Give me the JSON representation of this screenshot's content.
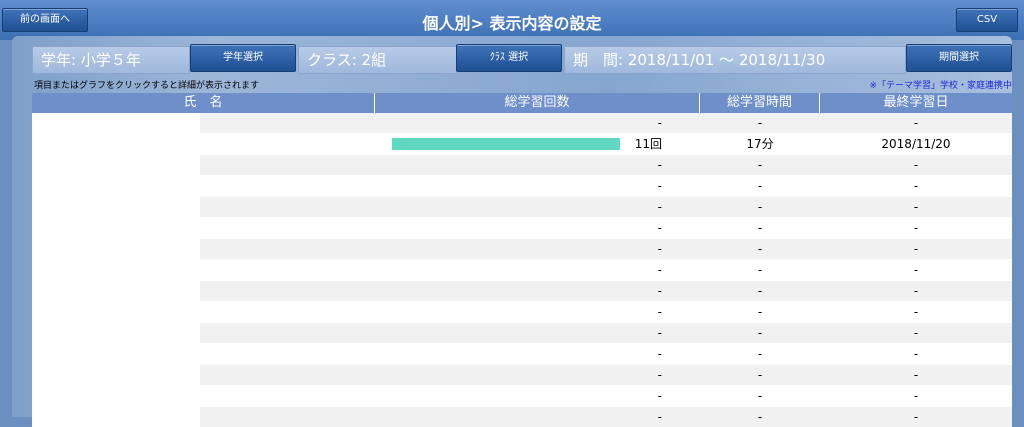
{
  "header": {
    "back_label": "前の画面へ",
    "title": "個人別> 表示内容の設定",
    "csv_label": "CSV"
  },
  "controls": {
    "grade": "学年: 小学５年",
    "grade_button": "学年選択",
    "class": "クラス: 2組",
    "class_button": "ｸﾗｽ 選択",
    "period": "期　間: 2018/11/01 ～ 2018/11/30",
    "period_button": "期間選択"
  },
  "hint": "項目またはグラフをクリックすると詳細が表示されます",
  "notice": "※「テーマ学習」学校・家庭連携中",
  "table": {
    "headers": [
      "氏　名",
      "総学習回数",
      "総学習時間",
      "最終学習日"
    ],
    "rows": [
      {
        "count": "-",
        "time": "-",
        "date": "-",
        "bar": 0
      },
      {
        "count": "11回",
        "time": "17分",
        "date": "2018/11/20",
        "bar": 1
      },
      {
        "count": "-",
        "time": "-",
        "date": "-",
        "bar": 0
      },
      {
        "count": "-",
        "time": "-",
        "date": "-",
        "bar": 0
      },
      {
        "count": "-",
        "time": "-",
        "date": "-",
        "bar": 0
      },
      {
        "count": "-",
        "time": "-",
        "date": "-",
        "bar": 0
      },
      {
        "count": "-",
        "time": "-",
        "date": "-",
        "bar": 0
      },
      {
        "count": "-",
        "time": "-",
        "date": "-",
        "bar": 0
      },
      {
        "count": "-",
        "time": "-",
        "date": "-",
        "bar": 0
      },
      {
        "count": "-",
        "time": "-",
        "date": "-",
        "bar": 0
      },
      {
        "count": "-",
        "time": "-",
        "date": "-",
        "bar": 0
      },
      {
        "count": "-",
        "time": "-",
        "date": "-",
        "bar": 0
      },
      {
        "count": "-",
        "time": "-",
        "date": "-",
        "bar": 0
      },
      {
        "count": "-",
        "time": "-",
        "date": "-",
        "bar": 0
      },
      {
        "count": "-",
        "time": "-",
        "date": "-",
        "bar": 0
      }
    ]
  },
  "colors": {
    "header_bg": "#3d6fb4",
    "table_header_bg": "#6f8fca",
    "bar": "#5fd8c0",
    "notice": "#1c2bd6"
  }
}
